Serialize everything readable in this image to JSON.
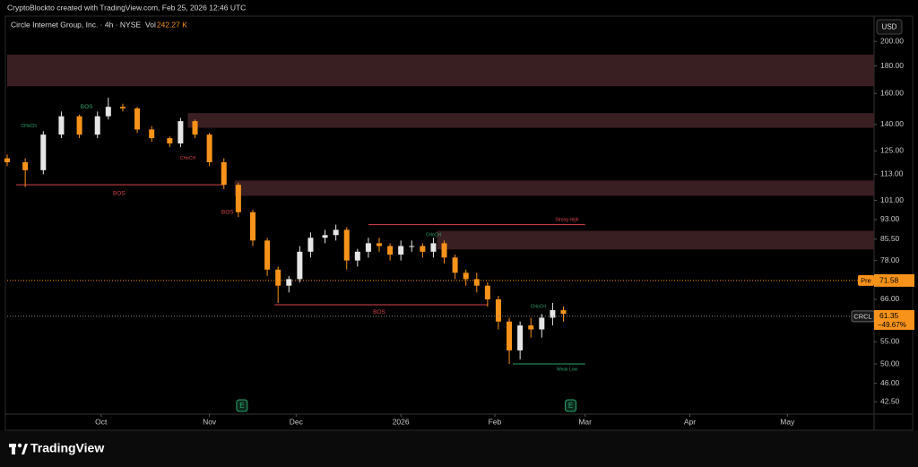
{
  "header": {
    "text": "CryptoBlockto created with TradingView.com, Feb 25, 2026 12:46 UTC"
  },
  "chart_data": {
    "type": "candlestick",
    "title": "Circle Internet Group, Inc. · 4h · NYSE",
    "volume_label": "Vol",
    "volume": {
      "value": 242270,
      "label": "242.27 K"
    },
    "currency": "USD",
    "x": [
      0,
      5,
      10,
      15,
      20,
      25,
      28,
      32,
      36,
      40,
      45,
      48,
      52,
      56,
      60,
      64,
      68,
      72,
      75,
      78,
      81,
      84,
      88,
      91,
      94,
      97,
      100,
      103,
      106,
      109,
      112,
      115,
      118,
      121,
      124,
      127,
      130,
      133,
      136,
      139,
      142,
      145,
      148,
      151,
      154
    ],
    "open": [
      121,
      119,
      115,
      134,
      145,
      134,
      145,
      151,
      150,
      137,
      132,
      129,
      142,
      134,
      119,
      108,
      96,
      85,
      75,
      70,
      72,
      81,
      86,
      87,
      89,
      78,
      81,
      84,
      83,
      80,
      83,
      83,
      81,
      84,
      79,
      74,
      72,
      70,
      66,
      60,
      53,
      59,
      58,
      61,
      63
    ],
    "high": [
      123,
      121,
      136,
      148,
      146,
      148,
      157,
      153,
      151,
      139,
      133,
      144,
      143,
      135,
      121,
      109,
      97,
      86,
      76,
      73,
      83,
      88,
      89,
      91,
      90,
      82,
      86,
      86,
      84,
      85,
      85,
      84,
      86,
      85,
      80,
      75,
      74,
      71,
      67,
      61,
      60,
      61,
      62,
      65,
      64
    ],
    "low": [
      117,
      107,
      113,
      132,
      132,
      132,
      143,
      148,
      135,
      130,
      127,
      127,
      132,
      117,
      106,
      94,
      83,
      73,
      65,
      68,
      71,
      79,
      84,
      85,
      75,
      76,
      79,
      81,
      78,
      78,
      81,
      79,
      79,
      77,
      72,
      70,
      68,
      64,
      58,
      50,
      51,
      56,
      56,
      59,
      60
    ],
    "close": [
      119,
      115,
      134,
      145,
      134,
      145,
      151,
      150,
      137,
      132,
      129,
      142,
      134,
      119,
      108,
      96,
      85,
      75,
      70,
      72,
      81,
      86,
      87,
      89,
      78,
      81,
      84,
      83,
      80,
      83,
      83,
      81,
      84,
      79,
      74,
      72,
      70,
      66,
      60,
      53,
      59,
      58,
      61,
      63,
      62
    ],
    "up_color": "#e6e6e6",
    "down_color": "#f7931a",
    "xlim": [
      0,
      240
    ],
    "xticks": [
      {
        "value": 26,
        "label": "Oct"
      },
      {
        "value": 56,
        "label": "Nov"
      },
      {
        "value": 80,
        "label": "Dec"
      },
      {
        "value": 109,
        "label": "2026"
      },
      {
        "value": 135,
        "label": "Feb"
      },
      {
        "value": 160,
        "label": "Mar"
      },
      {
        "value": 189,
        "label": "Apr"
      },
      {
        "value": 216,
        "label": "May"
      }
    ],
    "ylim": [
      40.3,
      223
    ],
    "log_scale": true,
    "yticks": [
      {
        "value": 200,
        "label": "200.00"
      },
      {
        "value": 180,
        "label": "180.00"
      },
      {
        "value": 160,
        "label": "160.00"
      },
      {
        "value": 140,
        "label": "140.00"
      },
      {
        "value": 125,
        "label": "125.00"
      },
      {
        "value": 113,
        "label": "113.00"
      },
      {
        "value": 101,
        "label": "101.00"
      },
      {
        "value": 93,
        "label": "93.00"
      },
      {
        "value": 85.5,
        "label": "85.50"
      },
      {
        "value": 78,
        "label": "78.00"
      },
      {
        "value": 66,
        "label": "66.00"
      },
      {
        "value": 55,
        "label": "55.00"
      },
      {
        "value": 50,
        "label": "50.00"
      },
      {
        "value": 46,
        "label": "46.00"
      },
      {
        "value": 42.5,
        "label": "42.50"
      }
    ],
    "zones": [
      {
        "x": 0,
        "top": 189,
        "bottom": 165
      },
      {
        "x": 50,
        "top": 147,
        "bottom": 138
      },
      {
        "x": 63,
        "top": 110,
        "bottom": 103
      },
      {
        "x": 119,
        "top": 88.6,
        "bottom": 81.8
      }
    ],
    "zone_color": "#3a1f22",
    "lines": [
      {
        "x0": 2.5,
        "x1": 60,
        "value": 108,
        "color": "#d9454b"
      },
      {
        "x0": 74,
        "x1": 133,
        "value": 64.5,
        "color": "#d9454b"
      },
      {
        "x0": 100,
        "x1": 160,
        "value": 91,
        "color": "#d9454b"
      },
      {
        "x0": 140,
        "x1": 160,
        "value": 50,
        "color": "#2aa36b"
      }
    ],
    "annotations": [
      {
        "text": "BOS",
        "x": 31,
        "y": 104,
        "color": "#d9454b"
      },
      {
        "text": "BOS",
        "x": 103,
        "y": 62.5,
        "color": "#d9454b"
      },
      {
        "text": "Strong High",
        "x": 155,
        "y": 93,
        "color": "#d9454b"
      },
      {
        "text": "Weak Low",
        "x": 155,
        "y": 48.8,
        "color": "#2aa36b"
      },
      {
        "text": "CHoCH",
        "x": 6,
        "y": 139,
        "color": "#2aa36b"
      },
      {
        "text": "BOS",
        "x": 22,
        "y": 151,
        "color": "#2aa36b"
      },
      {
        "text": "CHoCH",
        "x": 50,
        "y": 121,
        "color": "#d9454b"
      },
      {
        "text": "CHoCH",
        "x": 118,
        "y": 87,
        "color": "#2aa36b"
      },
      {
        "text": "CHoCH",
        "x": 147,
        "y": 64,
        "color": "#2aa36b"
      },
      {
        "text": "BOS",
        "x": 61,
        "y": 96,
        "color": "#d9454b"
      }
    ],
    "levels": [
      {
        "name": "Pre",
        "value": 71.58,
        "label": "71.58",
        "color": "#f7931a"
      }
    ],
    "last": {
      "symbol": "CRCL",
      "value": 61.35,
      "label": "61.35",
      "change": {
        "value": -49.67,
        "label": "−49.67%"
      },
      "color": "#f7931a"
    },
    "earnings": [
      {
        "x": 65,
        "label": "E"
      },
      {
        "x": 156,
        "label": "E"
      }
    ]
  },
  "footer": {
    "brand": "TradingView"
  }
}
